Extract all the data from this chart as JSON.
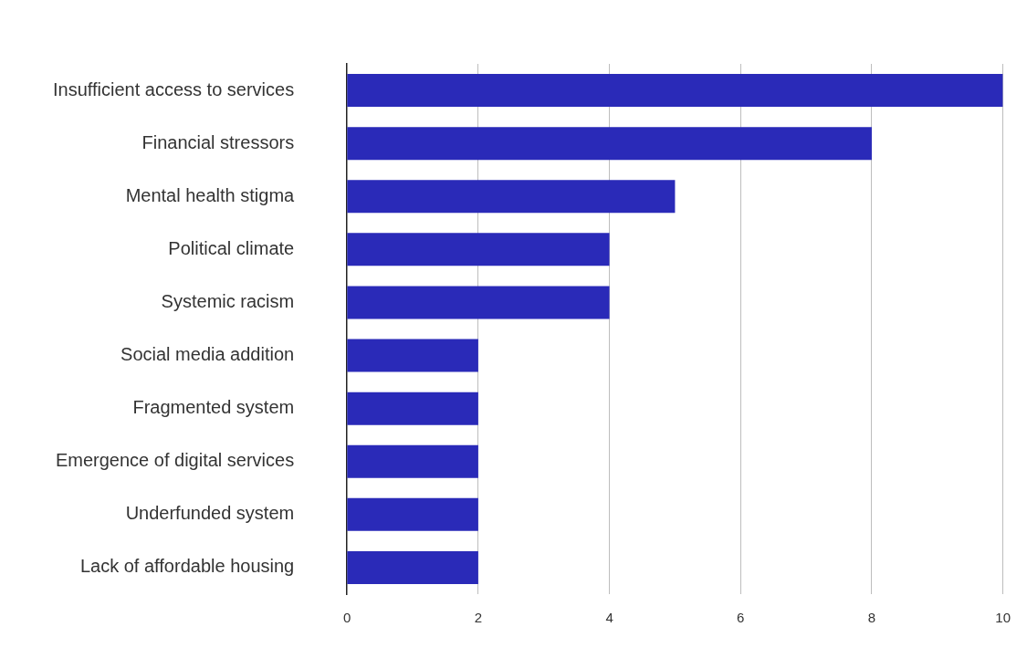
{
  "chart_data": {
    "type": "bar",
    "orientation": "horizontal",
    "categories": [
      "Insufficient access to services",
      "Financial stressors",
      "Mental health stigma",
      "Political climate",
      "Systemic racism",
      "Social media addition",
      "Fragmented system",
      "Emergence of digital services",
      "Underfunded system",
      "Lack of affordable housing"
    ],
    "values": [
      10,
      8,
      5,
      4,
      4,
      2,
      2,
      2,
      2,
      2
    ],
    "color": "#2a2ab8",
    "xlim": [
      0,
      10
    ],
    "xticks": [
      0,
      2,
      4,
      6,
      8,
      10
    ],
    "grid": "x",
    "legend": false
  }
}
